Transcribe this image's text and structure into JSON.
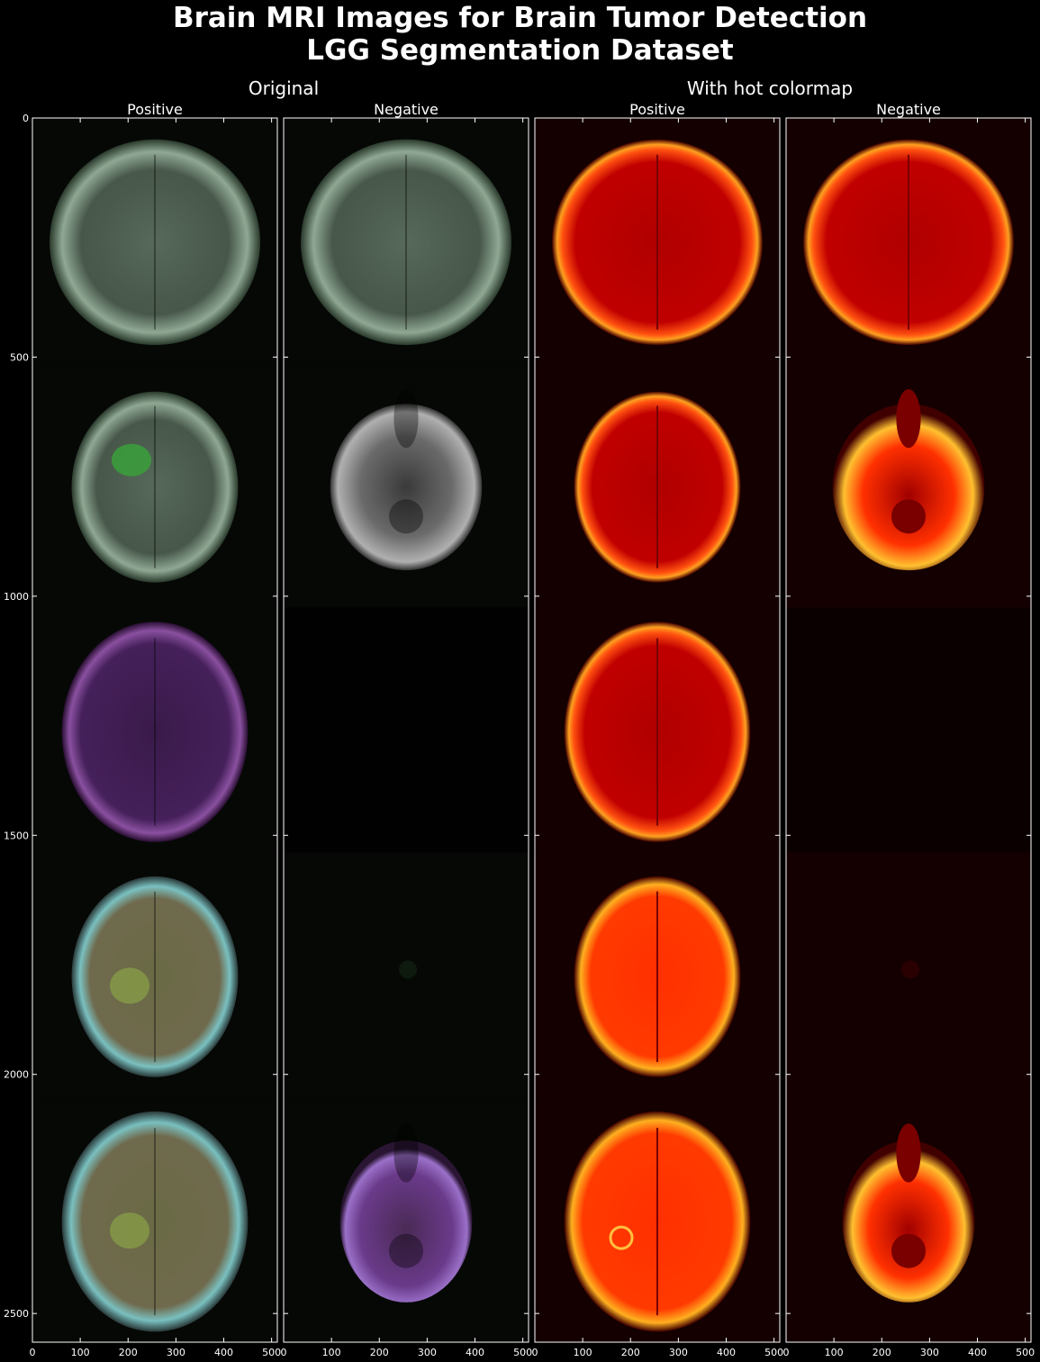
{
  "figure": {
    "suptitle_line1": "Brain MRI Images for Brain Tumor Detection",
    "suptitle_line2": "LGG Segmentation Dataset",
    "group_left": "Original",
    "group_right": "With hot colormap",
    "columns": [
      "Positive",
      "Negative",
      "Positive",
      "Negative"
    ]
  },
  "colors": {
    "background": "#000000",
    "axes": "#ffffff",
    "brain_original": [
      "#5a6e58",
      "#7a7a7a",
      "#4a2a60",
      "#8a8a4a",
      "#7a8a5a"
    ],
    "hot_low": "#3a0000",
    "hot_mid": "#ff2000",
    "hot_high": "#ffd000"
  },
  "chart_data": {
    "type": "image-grid",
    "xlim": [
      0,
      512
    ],
    "ylim": [
      2560,
      0
    ],
    "x_ticks": [
      "0",
      "100",
      "200",
      "300",
      "400",
      "500"
    ],
    "y_ticks": [
      "0",
      "500",
      "1000",
      "1500",
      "2000",
      "2500"
    ],
    "x_tick_values": [
      0,
      100,
      200,
      300,
      400,
      500
    ],
    "y_tick_values": [
      0,
      500,
      1000,
      1500,
      2000,
      2500
    ],
    "rows": 5,
    "panels": [
      {
        "column": "Original / Positive",
        "slices": [
          "brain-axial-green",
          "brain-small-green-tumor",
          "brain-purple",
          "brain-teal-ring",
          "brain-large-teal"
        ]
      },
      {
        "column": "Original / Negative",
        "slices": [
          "brain-axial-green",
          "skull-base-gray",
          "empty",
          "dark-faint",
          "skull-base-purple"
        ]
      },
      {
        "column": "Hot colormap / Positive",
        "slices": [
          "brain-axial",
          "brain-small",
          "brain-large",
          "brain-ring",
          "brain-large-bright"
        ]
      },
      {
        "column": "Hot colormap / Negative",
        "slices": [
          "brain-axial",
          "skull-base",
          "empty",
          "dark-faint",
          "skull-base-bright"
        ]
      }
    ]
  }
}
